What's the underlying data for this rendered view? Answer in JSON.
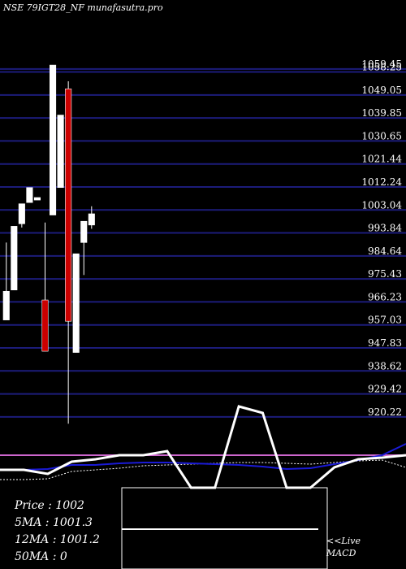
{
  "title": "NSE 79IGT28_NF munafasutra.pro",
  "colors": {
    "background": "#000000",
    "gridline": "#1c1c7a",
    "bull_candle": "#ffffff",
    "bear_candle": "#cc0000",
    "macd_signal": "#ffffff",
    "ma_line": "#1a1ad6",
    "ema_dotted": "#ffffff",
    "zero_line": "#cc66cc"
  },
  "info": {
    "price": "Price   : 1002",
    "ma5": "5MA : 1001.3",
    "ma12": "12MA : 1001.2",
    "ma50": "50MA : 0"
  },
  "macd_label": {
    "line1": "<<Live",
    "line2": "MACD"
  },
  "chart_data": {
    "type": "candlestick",
    "title": "NSE 79IGT28_NF munafasutra.pro",
    "ylim": [
      914.0,
      1062.0
    ],
    "y_ticks": [
      "1059.45",
      "1058.25",
      "1049.05",
      "1039.85",
      "1030.65",
      "1021.44",
      "1012.24",
      "1003.04",
      "993.84",
      "984.64",
      "975.43",
      "966.23",
      "957.03",
      "947.83",
      "938.62",
      "929.42",
      "920.22"
    ],
    "grid": true,
    "candles": [
      {
        "open": 959.0,
        "close": 970.5,
        "high": 990.0,
        "low": 959.0,
        "dir": "up"
      },
      {
        "open": 971.0,
        "close": 996.5,
        "high": 996.5,
        "low": 971.0,
        "dir": "up"
      },
      {
        "open": 997.5,
        "close": 1005.5,
        "high": 1005.5,
        "low": 996.0,
        "dir": "up"
      },
      {
        "open": 1006.0,
        "close": 1012.0,
        "high": 1012.0,
        "low": 1006.0,
        "dir": "up"
      },
      {
        "open": 1007.0,
        "close": 1008.0,
        "high": 1008.0,
        "low": 1007.0,
        "dir": "up"
      },
      {
        "open": 967.0,
        "close": 946.5,
        "high": 998.0,
        "low": 946.5,
        "dir": "down"
      },
      {
        "open": 1001.0,
        "close": 1061.0,
        "high": 1061.0,
        "low": 1001.0,
        "dir": "up"
      },
      {
        "open": 1012.0,
        "close": 1041.0,
        "high": 1041.0,
        "low": 1012.0,
        "dir": "up"
      },
      {
        "open": 1051.5,
        "close": 958.5,
        "high": 1054.5,
        "low": 917.5,
        "dir": "down"
      },
      {
        "open": 946.0,
        "close": 985.5,
        "high": 985.5,
        "low": 946.0,
        "dir": "up"
      },
      {
        "open": 990.0,
        "close": 998.5,
        "high": 998.5,
        "low": 977.0,
        "dir": "up"
      },
      {
        "open": 997.0,
        "close": 1001.5,
        "high": 1004.5,
        "low": 995.5,
        "dir": "up"
      }
    ],
    "macd": {
      "signal_line": [
        578,
        578,
        583,
        568,
        565,
        560,
        560,
        555,
        600,
        600,
        500,
        508,
        600,
        600,
        575,
        565,
        563,
        560
      ],
      "ma_line": [
        578,
        578,
        577,
        572,
        572,
        570,
        569,
        569,
        570,
        571,
        572,
        574,
        577,
        576,
        571,
        566,
        560,
        546
      ],
      "ema_dotted": [
        590,
        590,
        589,
        580,
        578,
        576,
        573,
        572,
        571,
        570,
        569,
        569,
        570,
        571,
        569,
        567,
        566,
        575
      ]
    }
  }
}
